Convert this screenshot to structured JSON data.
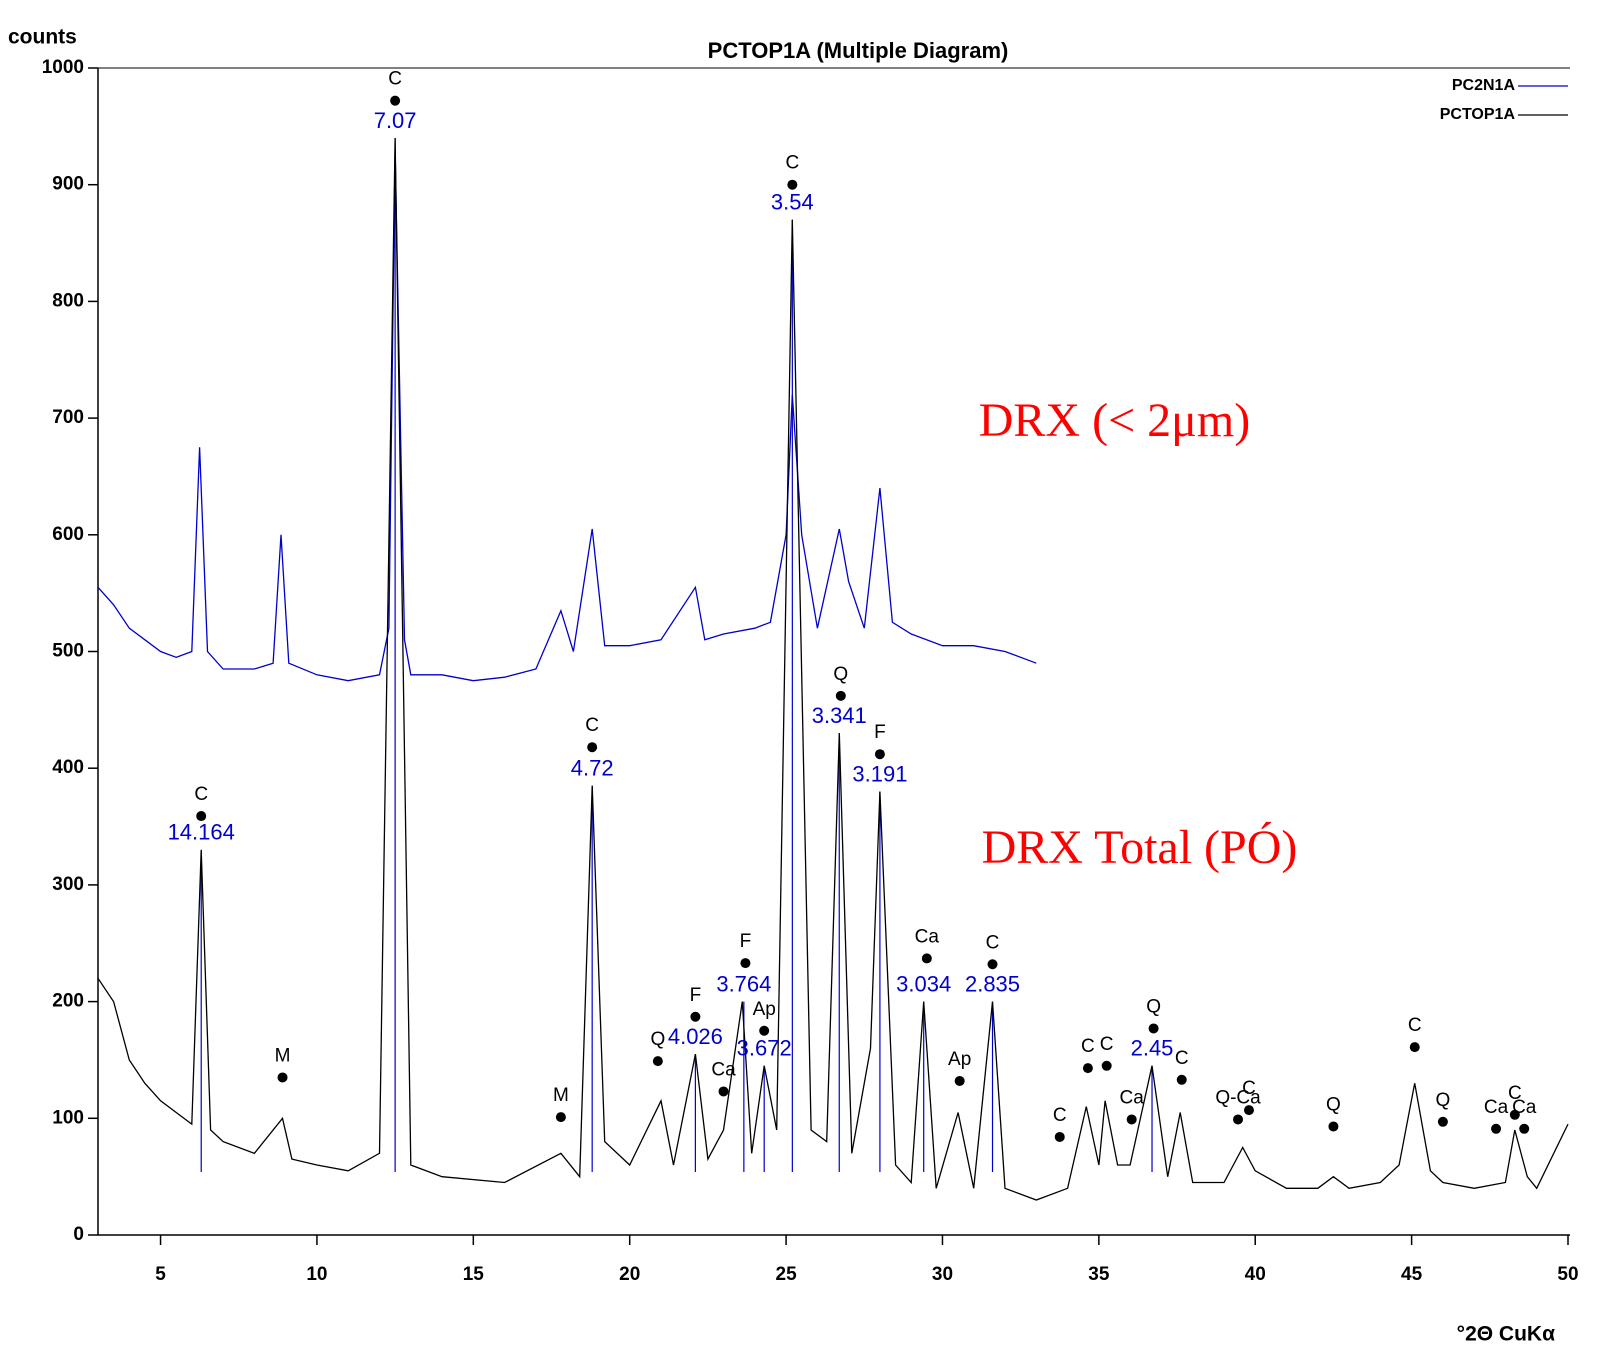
{
  "chart_data": {
    "type": "line",
    "title": "PCTOP1A (Multiple Diagram)",
    "ylabel": "counts",
    "xlabel": "°2Θ CuKα",
    "xlim": [
      3,
      50
    ],
    "ylim": [
      0,
      1000
    ],
    "xticks": [
      5,
      10,
      15,
      20,
      25,
      30,
      35,
      40,
      45,
      50
    ],
    "yticks": [
      0,
      100,
      200,
      300,
      400,
      500,
      600,
      700,
      800,
      900,
      1000
    ],
    "legend": "top-right",
    "series": [
      {
        "name": "PC2N1A",
        "color": "#0000cc",
        "x": [
          3,
          3.5,
          4,
          4.5,
          5,
          5.5,
          6,
          6.25,
          6.5,
          7,
          8,
          8.6,
          8.85,
          9.1,
          10,
          11,
          12,
          12.3,
          12.5,
          12.8,
          13,
          14,
          15,
          16,
          17,
          17.8,
          18.2,
          18.8,
          19.2,
          20,
          21,
          22.1,
          22.4,
          23,
          24,
          24.5,
          25,
          25.2,
          25.5,
          26,
          26.7,
          27,
          27.5,
          28,
          28.4,
          29,
          30,
          31,
          32,
          33
        ],
        "values": [
          555,
          540,
          520,
          510,
          500,
          495,
          500,
          675,
          500,
          485,
          485,
          490,
          600,
          490,
          480,
          475,
          480,
          520,
          930,
          510,
          480,
          480,
          475,
          478,
          485,
          535,
          500,
          605,
          505,
          505,
          510,
          555,
          510,
          515,
          520,
          525,
          600,
          720,
          600,
          520,
          605,
          560,
          520,
          640,
          525,
          515,
          505,
          505,
          500,
          490
        ]
      },
      {
        "name": "PCTOP1A",
        "color": "#000000",
        "x": [
          3,
          3.5,
          4,
          4.5,
          5,
          5.5,
          6,
          6.3,
          6.6,
          7,
          8,
          8.9,
          9.2,
          10,
          11,
          12,
          12.5,
          13,
          14,
          16,
          17.8,
          18.4,
          18.8,
          19.2,
          20,
          21,
          21.4,
          22.1,
          22.5,
          23,
          23.6,
          23.9,
          24.3,
          24.7,
          25.2,
          25.8,
          26.3,
          26.7,
          27.1,
          27.7,
          28,
          28.5,
          29,
          29.4,
          29.8,
          30.5,
          31,
          31.6,
          32,
          33,
          34,
          34.6,
          35,
          35.2,
          35.6,
          36,
          36.7,
          37.2,
          37.6,
          38,
          39,
          39.6,
          40,
          41,
          42,
          42.5,
          43,
          44,
          44.6,
          45.1,
          45.6,
          46,
          47,
          48,
          48.3,
          48.7,
          49,
          50
        ],
        "values": [
          220,
          200,
          150,
          130,
          115,
          105,
          95,
          330,
          90,
          80,
          70,
          100,
          65,
          60,
          55,
          70,
          940,
          60,
          50,
          45,
          70,
          50,
          385,
          80,
          60,
          115,
          60,
          155,
          65,
          90,
          200,
          70,
          145,
          90,
          870,
          90,
          80,
          430,
          70,
          160,
          380,
          60,
          45,
          200,
          40,
          105,
          40,
          200,
          40,
          30,
          40,
          110,
          60,
          115,
          60,
          60,
          145,
          50,
          105,
          45,
          45,
          75,
          55,
          40,
          40,
          50,
          40,
          45,
          60,
          130,
          55,
          45,
          40,
          45,
          90,
          50,
          40,
          95
        ]
      }
    ],
    "peak_labels": [
      {
        "label": "C",
        "x": 12.5,
        "y": 972
      },
      {
        "label": "C",
        "x": 25.2,
        "y": 900
      },
      {
        "label": "C",
        "x": 6.3,
        "y": 359
      },
      {
        "label": "M",
        "x": 8.9,
        "y": 135
      },
      {
        "label": "M",
        "x": 17.8,
        "y": 101
      },
      {
        "label": "C",
        "x": 18.8,
        "y": 418
      },
      {
        "label": "Q",
        "x": 20.9,
        "y": 149
      },
      {
        "label": "F",
        "x": 22.1,
        "y": 187
      },
      {
        "label": "Ca",
        "x": 23.0,
        "y": 123
      },
      {
        "label": "F",
        "x": 23.7,
        "y": 233
      },
      {
        "label": "Ap",
        "x": 24.3,
        "y": 175
      },
      {
        "label": "Q",
        "x": 26.75,
        "y": 462
      },
      {
        "label": "F",
        "x": 28.0,
        "y": 412
      },
      {
        "label": "Ca",
        "x": 29.5,
        "y": 237
      },
      {
        "label": "Ap",
        "x": 30.55,
        "y": 132
      },
      {
        "label": "C",
        "x": 31.6,
        "y": 232
      },
      {
        "label": "C",
        "x": 33.75,
        "y": 84
      },
      {
        "label": "C",
        "x": 34.65,
        "y": 143
      },
      {
        "label": "C",
        "x": 35.25,
        "y": 145
      },
      {
        "label": "Ca",
        "x": 36.05,
        "y": 99
      },
      {
        "label": "Q",
        "x": 36.75,
        "y": 177
      },
      {
        "label": "C",
        "x": 37.65,
        "y": 133
      },
      {
        "label": "Q-Ca",
        "x": 39.45,
        "y": 99
      },
      {
        "label": "C",
        "x": 39.8,
        "y": 107
      },
      {
        "label": "Q",
        "x": 42.5,
        "y": 93
      },
      {
        "label": "C",
        "x": 45.1,
        "y": 161
      },
      {
        "label": "Q",
        "x": 46.0,
        "y": 97
      },
      {
        "label": "Ca",
        "x": 47.7,
        "y": 91
      },
      {
        "label": "C",
        "x": 48.3,
        "y": 103
      },
      {
        "label": "Ca",
        "x": 48.6,
        "y": 91
      }
    ],
    "d_spacings": [
      {
        "label": "14.164",
        "x": 6.3,
        "y": 330
      },
      {
        "label": "7.07",
        "x": 12.5,
        "y": 940
      },
      {
        "label": "4.72",
        "x": 18.8,
        "y": 385
      },
      {
        "label": "4.026",
        "x": 22.1,
        "y": 155
      },
      {
        "label": "3.764",
        "x": 23.65,
        "y": 200
      },
      {
        "label": "3.672",
        "x": 24.3,
        "y": 145
      },
      {
        "label": "3.54",
        "x": 25.2,
        "y": 870
      },
      {
        "label": "3.341",
        "x": 26.7,
        "y": 430
      },
      {
        "label": "3.191",
        "x": 28.0,
        "y": 380
      },
      {
        "label": "3.034",
        "x": 29.4,
        "y": 200
      },
      {
        "label": "2.835",
        "x": 31.6,
        "y": 200
      },
      {
        "label": "2.45",
        "x": 36.7,
        "y": 145
      }
    ],
    "annotations": [
      {
        "text": "DRX (< 2μm)",
        "x": 35.5,
        "y": 694,
        "color": "#ff0000"
      },
      {
        "text": "DRX Total (PÓ)",
        "x": 36.3,
        "y": 328,
        "color": "#ff0000"
      }
    ]
  }
}
